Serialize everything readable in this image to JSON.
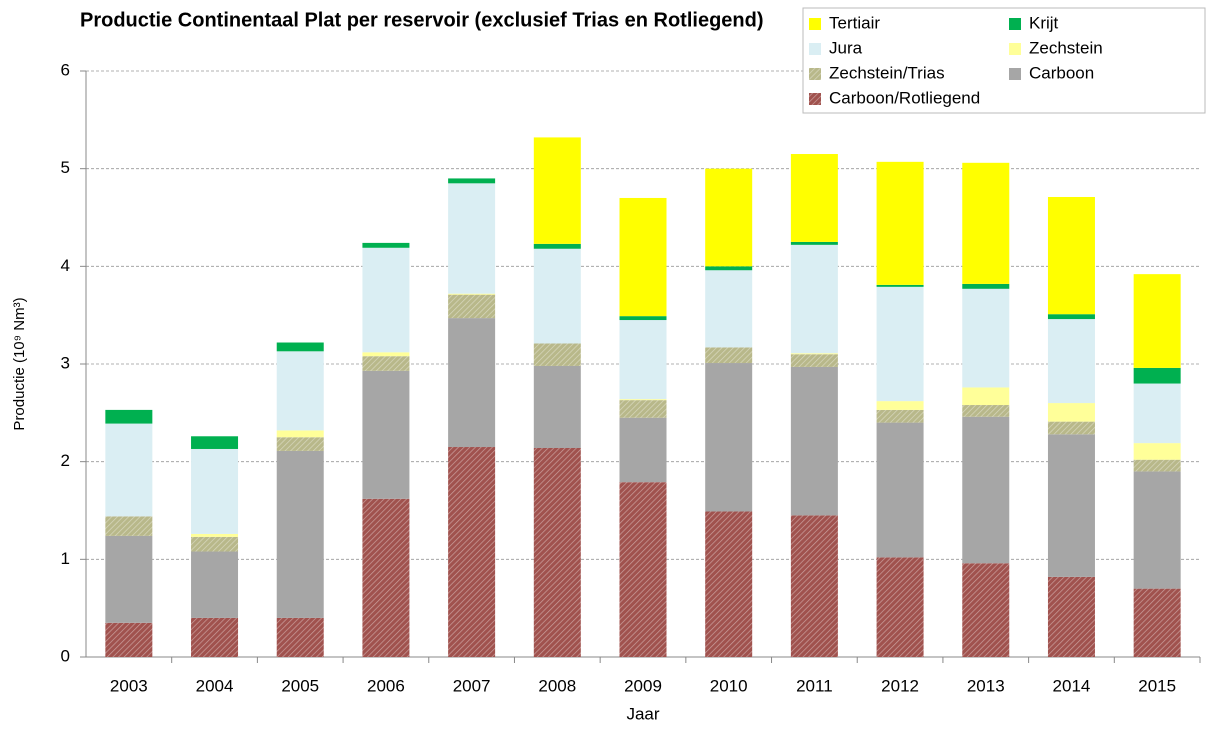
{
  "chart_data": {
    "type": "stacked_bar",
    "title": "Productie Continentaal Plat per reservoir  (exclusief Trias en Rotliegend)",
    "y_label": "Productie (10⁹ Nm³)",
    "x_label": "Jaar",
    "categories": [
      "2003",
      "2004",
      "2005",
      "2006",
      "2007",
      "2008",
      "2009",
      "2010",
      "2011",
      "2012",
      "2013",
      "2014",
      "2015"
    ],
    "series": [
      {
        "name": "Carboon/Rotliegend",
        "color": "#a0524e",
        "hatched": true,
        "values": [
          0.35,
          0.4,
          0.4,
          1.62,
          2.15,
          2.14,
          1.79,
          1.49,
          1.45,
          1.02,
          0.96,
          0.82,
          0.7
        ]
      },
      {
        "name": "Carboon",
        "color": "#a6a6a6",
        "values": [
          0.89,
          0.68,
          1.71,
          1.31,
          1.32,
          0.84,
          0.66,
          1.52,
          1.52,
          1.38,
          1.5,
          1.46,
          1.2
        ]
      },
      {
        "name": "Zechstein/Trias",
        "color": "#b8b88a",
        "hatched": true,
        "values": [
          0.2,
          0.15,
          0.14,
          0.15,
          0.24,
          0.23,
          0.18,
          0.16,
          0.13,
          0.13,
          0.12,
          0.13,
          0.12
        ]
      },
      {
        "name": "Zechstein",
        "color": "#ffff99",
        "values": [
          0.0,
          0.03,
          0.07,
          0.04,
          0.01,
          0.0,
          0.01,
          0.0,
          0.01,
          0.09,
          0.18,
          0.19,
          0.17
        ]
      },
      {
        "name": "Jura",
        "color": "#daeef3",
        "values": [
          0.95,
          0.87,
          0.81,
          1.07,
          1.13,
          0.97,
          0.81,
          0.79,
          1.11,
          1.17,
          1.01,
          0.86,
          0.61
        ]
      },
      {
        "name": "Krijt",
        "color": "#00b050",
        "values": [
          0.14,
          0.13,
          0.09,
          0.05,
          0.05,
          0.05,
          0.04,
          0.04,
          0.03,
          0.02,
          0.05,
          0.05,
          0.16
        ]
      },
      {
        "name": "Tertiair",
        "color": "#ffff00",
        "values": [
          0,
          0,
          0,
          0,
          0,
          1.09,
          1.21,
          1.0,
          0.9,
          1.26,
          1.24,
          1.2,
          0.96
        ]
      }
    ],
    "ylim": [
      0,
      6
    ],
    "yticks": [
      0,
      1,
      2,
      3,
      4,
      5,
      6
    ],
    "grid": true,
    "legend": "top-right"
  }
}
